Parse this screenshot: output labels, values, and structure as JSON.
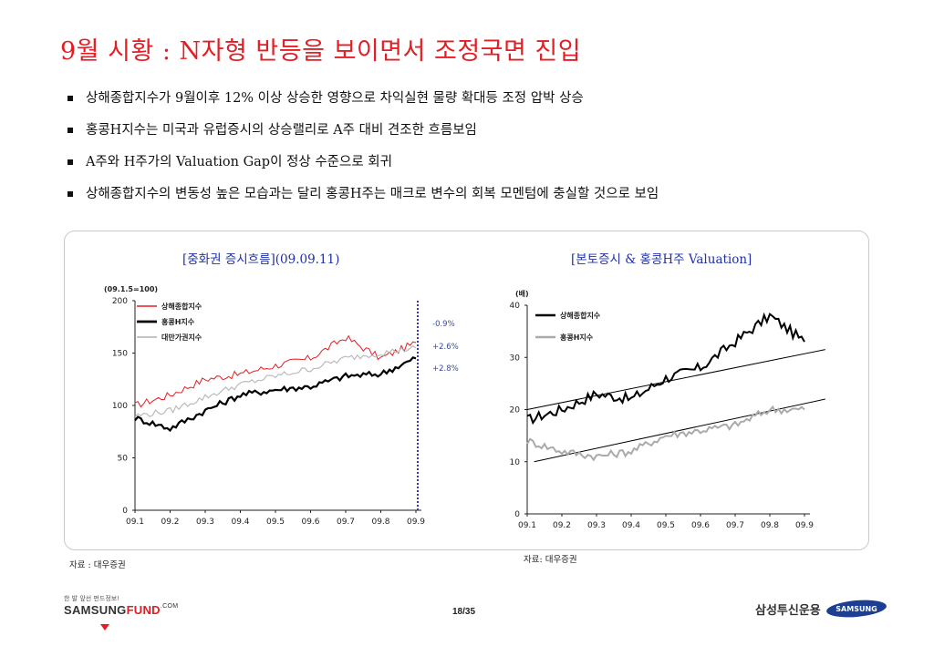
{
  "title": "9월 시황 : N자형 반등을 보이면서 조정국면 진입",
  "bullets": [
    "상해종합지수가 9월이후 12% 이상 상승한 영향으로 차익실현 물량 확대등 조정 압박 상승",
    "홍콩H지수는 미국과 유럽증시의 상승랠리로 A주 대비 견조한 흐름보임",
    "A주와 H주가의 Valuation Gap이  정상 수준으로 회귀",
    "상해종합지수의 변동성 높은 모습과는 달리 홍콩H주는 매크로 변수의 회복 모멘텀에 충실할 것으로 보임"
  ],
  "left_chart_heading": "[중화권 증시흐름](09.09.11)",
  "right_chart_heading": "[본토증시 & 홍콩H주 Valuation]",
  "left_source": "자료 : 대우증권",
  "right_source": "자료: 대우증권",
  "footer": {
    "slogan": "한 발 앞선 펀드정보!",
    "brand_main": "SAMSUNG",
    "brand_fund": "FUND",
    "brand_com": ".COM",
    "page": "18/35",
    "company": "삼성투신운용",
    "logo_text": "SAMSUNG"
  },
  "colors": {
    "title": "#e31e24",
    "heading": "#2030a8",
    "shanghai_left": "#e31e24",
    "hscei": "#000000",
    "taiwan": "#bbbbbb",
    "divider": "#3a3aa8"
  },
  "chart_data": [
    {
      "type": "line",
      "unit_note": "(09.1.5=100)",
      "x": [
        "09.1",
        "09.2",
        "09.3",
        "09.4",
        "09.5",
        "09.6",
        "09.7",
        "09.8",
        "09.9"
      ],
      "ylim": [
        0,
        200
      ],
      "yticks": [
        0,
        50,
        100,
        150,
        200
      ],
      "vline_x": "09.9",
      "series": [
        {
          "name": "상해종합지수",
          "color": "#e31e24",
          "values": [
            100,
            110,
            125,
            130,
            138,
            145,
            165,
            145,
            160
          ],
          "end_label": "-0.9%"
        },
        {
          "name": "홍콩H지수",
          "color": "#000000",
          "values": [
            88,
            78,
            95,
            110,
            115,
            118,
            128,
            130,
            145
          ],
          "end_label": "+2.6%"
        },
        {
          "name": "대만가권지수",
          "color": "#bbbbbb",
          "values": [
            90,
            95,
            108,
            120,
            128,
            135,
            145,
            150,
            155
          ],
          "end_label": "+2.8%"
        }
      ]
    },
    {
      "type": "line",
      "unit_note": "(배)",
      "x": [
        "09.1",
        "09.2",
        "09.3",
        "09.4",
        "09.5",
        "09.6",
        "09.7",
        "09.8",
        "09.9"
      ],
      "ylim": [
        0,
        40
      ],
      "yticks": [
        0,
        10,
        20,
        30,
        40
      ],
      "series": [
        {
          "name": "상해종합지수",
          "color": "#000000",
          "values": [
            18,
            20,
            23,
            22,
            26,
            28,
            33,
            38,
            33
          ]
        },
        {
          "name": "홍콩H지수",
          "color": "#aaaaaa",
          "values": [
            14,
            12,
            11,
            12,
            15,
            16,
            17,
            20,
            20
          ]
        }
      ],
      "trendlines": [
        {
          "series": "상해종합지수",
          "from": [
            0,
            20
          ],
          "to": [
            8.6,
            31.5
          ]
        },
        {
          "series": "홍콩H지수",
          "from": [
            0.2,
            10
          ],
          "to": [
            8.6,
            22
          ]
        }
      ]
    }
  ]
}
